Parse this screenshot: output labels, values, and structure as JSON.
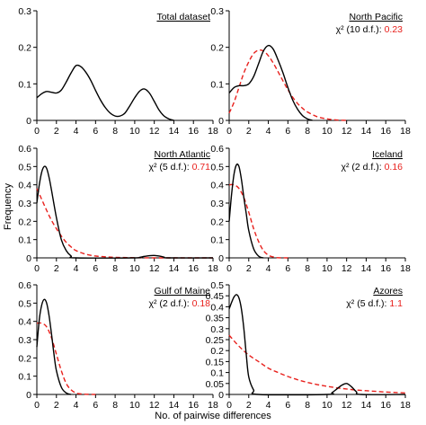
{
  "figure": {
    "ylabel": "Frequency",
    "xlabel": "No. of pairwise differences"
  },
  "colors": {
    "observed": "#000000",
    "expected": "#e8201c",
    "stat_value": "#e8201c",
    "axis": "#000000"
  },
  "chart_data": [
    {
      "type": "line",
      "title": "Total dataset",
      "stat_label": "",
      "stat_value": "",
      "xlim": [
        0,
        18
      ],
      "ylim": [
        0,
        0.3
      ],
      "xticks": [
        0,
        2,
        4,
        6,
        8,
        10,
        12,
        14,
        16,
        18
      ],
      "yticks": [
        0,
        0.1,
        0.2,
        0.3
      ],
      "grid": false,
      "series": [
        {
          "style": "solid",
          "color": "#000000",
          "x": [
            0,
            0.5,
            1,
            1.5,
            2,
            2.5,
            3,
            3.5,
            4,
            4.5,
            5,
            5.5,
            6,
            6.5,
            7,
            7.5,
            8,
            8.5,
            9,
            9.5,
            10,
            10.5,
            11,
            11.5,
            12,
            12.5,
            13,
            13.5,
            14
          ],
          "y": [
            0.062,
            0.073,
            0.079,
            0.077,
            0.075,
            0.083,
            0.105,
            0.13,
            0.15,
            0.147,
            0.132,
            0.11,
            0.082,
            0.056,
            0.035,
            0.02,
            0.012,
            0.012,
            0.02,
            0.04,
            0.062,
            0.08,
            0.086,
            0.075,
            0.052,
            0.028,
            0.012,
            0.004,
            0.0
          ]
        }
      ]
    },
    {
      "type": "line",
      "title": "North Pacific",
      "stat_label": "χ² (10 d.f.): ",
      "stat_value": "0.23",
      "xlim": [
        0,
        18
      ],
      "ylim": [
        0,
        0.3
      ],
      "xticks": [
        0,
        2,
        4,
        6,
        8,
        10,
        12,
        14,
        16,
        18
      ],
      "yticks": [
        0,
        0.1,
        0.2,
        0.3
      ],
      "grid": false,
      "series": [
        {
          "style": "solid",
          "color": "#000000",
          "x": [
            0,
            0.5,
            1,
            1.5,
            2,
            2.5,
            3,
            3.5,
            4,
            4.5,
            5,
            5.5,
            6,
            6.5,
            7,
            7.5,
            8,
            8.5
          ],
          "y": [
            0.075,
            0.09,
            0.095,
            0.095,
            0.1,
            0.12,
            0.155,
            0.19,
            0.205,
            0.195,
            0.165,
            0.13,
            0.09,
            0.055,
            0.03,
            0.013,
            0.004,
            0.0
          ]
        },
        {
          "style": "dashed",
          "color": "#e8201c",
          "x": [
            0,
            0.5,
            1,
            1.5,
            2,
            2.5,
            3,
            3.5,
            4,
            4.5,
            5,
            5.5,
            6,
            6.5,
            7,
            7.5,
            8,
            9,
            10,
            11,
            12
          ],
          "y": [
            0.02,
            0.05,
            0.09,
            0.13,
            0.16,
            0.183,
            0.192,
            0.19,
            0.177,
            0.157,
            0.133,
            0.108,
            0.084,
            0.063,
            0.046,
            0.033,
            0.023,
            0.01,
            0.004,
            0.001,
            0.0
          ]
        }
      ]
    },
    {
      "type": "line",
      "title": "North Atlantic",
      "stat_label": "χ² (5 d.f.): ",
      "stat_value": "0.71",
      "xlim": [
        0,
        18
      ],
      "ylim": [
        0,
        0.6
      ],
      "xticks": [
        0,
        2,
        4,
        6,
        8,
        10,
        12,
        14,
        16,
        18
      ],
      "yticks": [
        0,
        0.1,
        0.2,
        0.3,
        0.4,
        0.5,
        0.6
      ],
      "grid": false,
      "series": [
        {
          "style": "solid",
          "color": "#000000",
          "x": [
            0,
            0.25,
            0.5,
            0.75,
            1,
            1.25,
            1.5,
            2,
            2.5,
            3,
            3.5,
            4,
            10,
            10.5,
            11,
            11.5,
            12,
            12.5,
            13,
            13.5,
            18
          ],
          "y": [
            0.3,
            0.4,
            0.47,
            0.5,
            0.49,
            0.44,
            0.37,
            0.22,
            0.1,
            0.04,
            0.01,
            0.0,
            0.0,
            0.003,
            0.008,
            0.012,
            0.013,
            0.01,
            0.004,
            0.0,
            0.0
          ]
        },
        {
          "style": "dashed",
          "color": "#e8201c",
          "x": [
            0,
            0.5,
            1,
            1.5,
            2,
            2.5,
            3,
            3.5,
            4,
            5,
            6,
            7,
            8,
            10,
            12,
            14,
            16,
            18
          ],
          "y": [
            0.38,
            0.32,
            0.26,
            0.205,
            0.16,
            0.12,
            0.085,
            0.06,
            0.04,
            0.02,
            0.01,
            0.006,
            0.003,
            0.001,
            0.0,
            0.0,
            0.0,
            0.0
          ]
        }
      ]
    },
    {
      "type": "line",
      "title": "Iceland",
      "stat_label": "χ² (2 d.f.): ",
      "stat_value": "0.16",
      "xlim": [
        0,
        18
      ],
      "ylim": [
        0,
        0.6
      ],
      "xticks": [
        0,
        2,
        4,
        6,
        8,
        10,
        12,
        14,
        16,
        18
      ],
      "yticks": [
        0,
        0.1,
        0.2,
        0.3,
        0.4,
        0.5,
        0.6
      ],
      "grid": false,
      "series": [
        {
          "style": "solid",
          "color": "#000000",
          "x": [
            0,
            0.25,
            0.5,
            0.75,
            1,
            1.25,
            1.5,
            1.75,
            2,
            2.5,
            3,
            3.5
          ],
          "y": [
            0.2,
            0.35,
            0.46,
            0.51,
            0.5,
            0.43,
            0.33,
            0.24,
            0.15,
            0.05,
            0.01,
            0.0
          ]
        },
        {
          "style": "dashed",
          "color": "#e8201c",
          "x": [
            0,
            0.5,
            1,
            1.5,
            2,
            2.5,
            3,
            3.5,
            4,
            4.5,
            5,
            6
          ],
          "y": [
            0.4,
            0.4,
            0.38,
            0.33,
            0.25,
            0.16,
            0.09,
            0.04,
            0.015,
            0.005,
            0.001,
            0.0
          ]
        }
      ]
    },
    {
      "type": "line",
      "title": "Gulf of Maine",
      "stat_label": "χ² (2 d.f.): ",
      "stat_value": "0.18",
      "xlim": [
        0,
        18
      ],
      "ylim": [
        0,
        0.6
      ],
      "xticks": [
        0,
        2,
        4,
        6,
        8,
        10,
        12,
        14,
        16,
        18
      ],
      "yticks": [
        0,
        0.1,
        0.2,
        0.3,
        0.4,
        0.5,
        0.6
      ],
      "grid": false,
      "series": [
        {
          "style": "solid",
          "color": "#000000",
          "x": [
            0,
            0.25,
            0.5,
            0.75,
            1,
            1.25,
            1.5,
            1.75,
            2,
            2.5,
            3,
            3.5
          ],
          "y": [
            0.26,
            0.41,
            0.49,
            0.52,
            0.5,
            0.43,
            0.33,
            0.22,
            0.13,
            0.04,
            0.008,
            0.0
          ]
        },
        {
          "style": "dashed",
          "color": "#e8201c",
          "x": [
            0,
            0.5,
            1,
            1.5,
            2,
            2.5,
            3,
            3.5,
            4,
            4.5,
            5,
            6
          ],
          "y": [
            0.39,
            0.39,
            0.37,
            0.31,
            0.22,
            0.13,
            0.06,
            0.025,
            0.008,
            0.003,
            0.001,
            0.0
          ]
        }
      ]
    },
    {
      "type": "line",
      "title": "Azores",
      "stat_label": "χ² (5 d.f.): ",
      "stat_value": "1.1",
      "xlim": [
        0,
        18
      ],
      "ylim": [
        0,
        0.5
      ],
      "xticks": [
        0,
        2,
        4,
        6,
        8,
        10,
        12,
        14,
        16,
        18
      ],
      "yticks": [
        0,
        0.05,
        0.1,
        0.15,
        0.2,
        0.25,
        0.3,
        0.35,
        0.4,
        0.45,
        0.5
      ],
      "grid": false,
      "series": [
        {
          "style": "solid",
          "color": "#000000",
          "x": [
            0,
            0.25,
            0.5,
            0.75,
            1,
            1.25,
            1.5,
            1.75,
            2,
            2.5,
            3,
            10,
            10.5,
            11,
            11.5,
            12,
            12.5,
            13,
            13.5,
            18
          ],
          "y": [
            0.39,
            0.42,
            0.445,
            0.455,
            0.44,
            0.39,
            0.3,
            0.18,
            0.08,
            0.02,
            0.0,
            0.0,
            0.008,
            0.025,
            0.042,
            0.05,
            0.035,
            0.012,
            0.0,
            0.0
          ]
        },
        {
          "style": "dashed",
          "color": "#e8201c",
          "x": [
            0,
            1,
            2,
            3,
            4,
            5,
            6,
            7,
            8,
            9,
            10,
            11,
            12,
            13,
            14,
            15,
            16,
            17,
            18
          ],
          "y": [
            0.27,
            0.22,
            0.18,
            0.15,
            0.12,
            0.1,
            0.082,
            0.067,
            0.055,
            0.045,
            0.037,
            0.03,
            0.025,
            0.02,
            0.017,
            0.014,
            0.011,
            0.009,
            0.007
          ]
        }
      ]
    }
  ]
}
